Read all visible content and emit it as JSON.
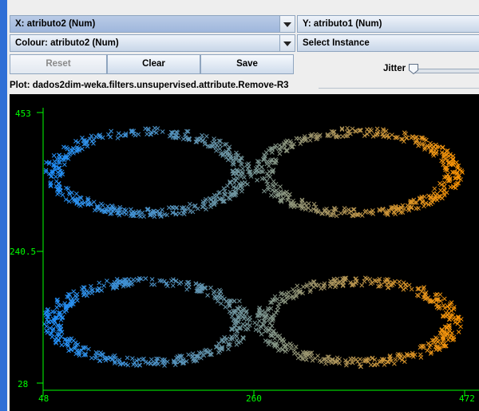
{
  "controls": {
    "x_axis_select": "X: atributo2 (Num)",
    "y_axis_select": "Y: atributo1 (Num)",
    "colour_select": "Colour: atributo2 (Num)",
    "instance_select": "Select Instance",
    "reset_label": "Reset",
    "clear_label": "Clear",
    "save_label": "Save",
    "jitter_label": "Jitter",
    "jitter_value": 0
  },
  "plot_title": "Plot: dados2dim-weka.filters.unsupervised.attribute.Remove-R3",
  "colors": {
    "axis": "#00ff00",
    "background": "#000000",
    "low": "#1e90ff",
    "high": "#ff9400"
  },
  "chart_data": {
    "type": "scatter",
    "marker": "x",
    "xlim": [
      48,
      472
    ],
    "ylim": [
      28,
      453
    ],
    "x_ticks": [
      "48",
      "260",
      "472"
    ],
    "y_ticks": [
      "453",
      "240.5",
      "28"
    ],
    "colour_attribute": "atributo2",
    "clusters": [
      {
        "shape": "ring",
        "center": [
          153,
          359
        ],
        "radius": [
          97,
          65
        ],
        "points": 450
      },
      {
        "shape": "ring",
        "center": [
          365,
          359
        ],
        "radius": [
          97,
          65
        ],
        "points": 450
      },
      {
        "shape": "ring",
        "center": [
          153,
          124
        ],
        "radius": [
          97,
          65
        ],
        "points": 450
      },
      {
        "shape": "ring",
        "center": [
          365,
          124
        ],
        "radius": [
          97,
          65
        ],
        "points": 450
      }
    ]
  }
}
